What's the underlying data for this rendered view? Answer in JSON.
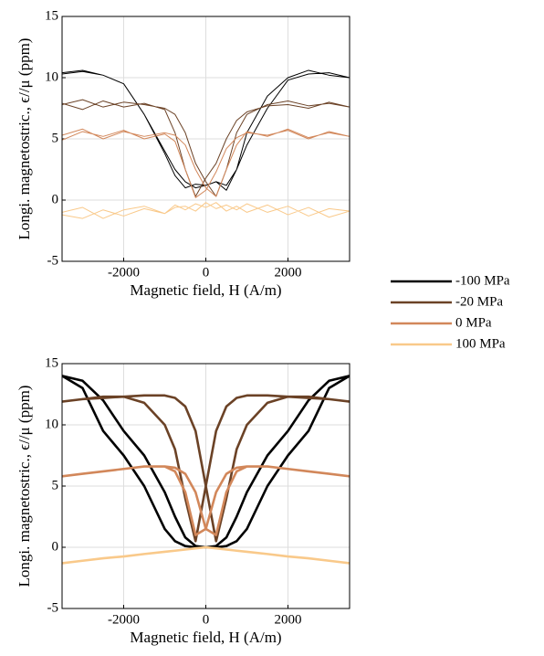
{
  "chart_data": [
    {
      "type": "line",
      "xlabel": "Magnetic field, H (A/m)",
      "ylabel": "Longi. magnetostric., ϵ//μ (ppm)",
      "xlim": [
        -3500,
        3500
      ],
      "ylim": [
        -5,
        15
      ],
      "xticks": [
        -2000,
        0,
        2000
      ],
      "yticks": [
        -5,
        0,
        5,
        10,
        15
      ],
      "grid": true,
      "legend": "right",
      "x": [
        -3500,
        -3000,
        -2500,
        -2000,
        -1500,
        -1000,
        -750,
        -500,
        -250,
        0,
        250,
        500,
        750,
        1000,
        1500,
        2000,
        2500,
        3000,
        3500,
        3000,
        2500,
        2000,
        1500,
        1000,
        750,
        500,
        250,
        0,
        -250,
        -500,
        -750,
        -1000,
        -1500,
        -2000,
        -2500,
        -3000,
        -3500
      ],
      "series": [
        {
          "name": "-100 MPa",
          "color": "#000000",
          "values": [
            10.3,
            10.5,
            10.2,
            9.5,
            7,
            4,
            2.5,
            1.5,
            1,
            1.2,
            1.5,
            0.8,
            2.5,
            5.5,
            8.5,
            10,
            10.6,
            10.2,
            10,
            10.4,
            10.3,
            9.8,
            7.5,
            4.5,
            2.5,
            1.2,
            1.5,
            1.2,
            1.3,
            1.0,
            2.0,
            3.8,
            7.0,
            9.5,
            10.2,
            10.6,
            10.4
          ]
        },
        {
          "name": "-20 MPa",
          "color": "#6b4226",
          "values": [
            7.8,
            8.2,
            7.6,
            8,
            7.8,
            7.5,
            7,
            5.5,
            3,
            1.5,
            0.3,
            2.5,
            5.5,
            7,
            7.8,
            8.1,
            7.7,
            7.9,
            7.6,
            8,
            7.5,
            7.8,
            7.7,
            7.2,
            6.5,
            5,
            3,
            1.8,
            0.3,
            2.5,
            5.5,
            7.4,
            7.9,
            7.6,
            8.1,
            7.4,
            7.9
          ]
        },
        {
          "name": "0 MPa",
          "color": "#d2875a",
          "values": [
            5.3,
            5.8,
            5,
            5.6,
            5.2,
            5.5,
            5.3,
            4.5,
            2.5,
            1,
            0.3,
            2.5,
            4.5,
            5.6,
            5.2,
            5.8,
            5.1,
            5.5,
            5.2,
            5.6,
            5,
            5.7,
            5.3,
            5.5,
            5.1,
            4.2,
            2.3,
            0.8,
            0.2,
            2.5,
            4.8,
            5.4,
            5,
            5.7,
            5.2,
            5.6,
            4.9
          ]
        },
        {
          "name": "100 MPa",
          "color": "#f9c98a",
          "values": [
            -1,
            -0.6,
            -1.5,
            -0.8,
            -0.5,
            -1.1,
            -0.4,
            -0.8,
            -0.3,
            -0.6,
            -0.2,
            -0.9,
            -0.5,
            -1,
            -0.4,
            -1.2,
            -0.6,
            -1.4,
            -0.9,
            -0.7,
            -1.3,
            -0.5,
            -1.0,
            -0.3,
            -0.8,
            -0.4,
            -0.7,
            -0.2,
            -0.9,
            -0.5,
            -0.6,
            -1.1,
            -0.7,
            -1.3,
            -0.8,
            -1.5,
            -1.2
          ]
        }
      ]
    },
    {
      "type": "line",
      "xlabel": "Magnetic field, H (A/m)",
      "ylabel": "Longi. magnetostric., ϵ//μ (ppm)",
      "xlim": [
        -3500,
        3500
      ],
      "ylim": [
        -5,
        15
      ],
      "xticks": [
        -2000,
        0,
        2000
      ],
      "yticks": [
        -5,
        0,
        5,
        10,
        15
      ],
      "grid": true,
      "x": [
        -3500,
        -3000,
        -2500,
        -2000,
        -1500,
        -1000,
        -750,
        -500,
        -250,
        0,
        250,
        500,
        750,
        1000,
        1500,
        2000,
        2500,
        3000,
        3500,
        3000,
        2500,
        2000,
        1500,
        1000,
        750,
        500,
        250,
        0,
        -250,
        -500,
        -750,
        -1000,
        -1500,
        -2000,
        -2500,
        -3000,
        -3500
      ],
      "series": [
        {
          "color": "#000000",
          "values": [
            14,
            13.6,
            12,
            9.5,
            7.5,
            4.5,
            2.5,
            0.8,
            0.1,
            0,
            0,
            0.1,
            0.5,
            1.5,
            5,
            7.5,
            9.5,
            13,
            14,
            13.6,
            12,
            9.5,
            7.5,
            4.5,
            2.5,
            0.8,
            0.1,
            0,
            0,
            0.1,
            0.5,
            1.5,
            5,
            7.5,
            9.5,
            13,
            14
          ]
        },
        {
          "color": "#6b4226",
          "values": [
            11.9,
            12.1,
            12.2,
            12.3,
            12.4,
            12.4,
            12.2,
            11.5,
            9.5,
            5,
            0.5,
            4,
            8,
            10,
            11.8,
            12.3,
            12.3,
            12.1,
            11.9,
            12.1,
            12.2,
            12.3,
            12.4,
            12.4,
            12.2,
            11.5,
            9.5,
            5,
            0.5,
            4,
            8,
            10,
            11.8,
            12.3,
            12.3,
            12.1,
            11.9
          ]
        },
        {
          "color": "#d2875a",
          "values": [
            5.8,
            6.0,
            6.2,
            6.4,
            6.6,
            6.6,
            6.5,
            6,
            4.5,
            1.5,
            1,
            4.5,
            6.2,
            6.6,
            6.6,
            6.4,
            6.2,
            6.0,
            5.8,
            6.0,
            6.2,
            6.4,
            6.6,
            6.6,
            6.5,
            6,
            4.5,
            1.5,
            1,
            4.5,
            6.2,
            6.6,
            6.6,
            6.4,
            6.2,
            6.0,
            5.8
          ]
        },
        {
          "color": "#f9c98a",
          "values": [
            -1.3,
            -1.1,
            -0.9,
            -0.75,
            -0.55,
            -0.37,
            -0.28,
            -0.18,
            -0.09,
            0,
            -0.09,
            -0.18,
            -0.28,
            -0.37,
            -0.55,
            -0.75,
            -0.9,
            -1.1,
            -1.3,
            -1.1,
            -0.9,
            -0.75,
            -0.55,
            -0.37,
            -0.28,
            -0.18,
            -0.09,
            0,
            -0.09,
            -0.18,
            -0.28,
            -0.37,
            -0.55,
            -0.75,
            -0.9,
            -1.1,
            -1.3
          ]
        }
      ]
    }
  ]
}
